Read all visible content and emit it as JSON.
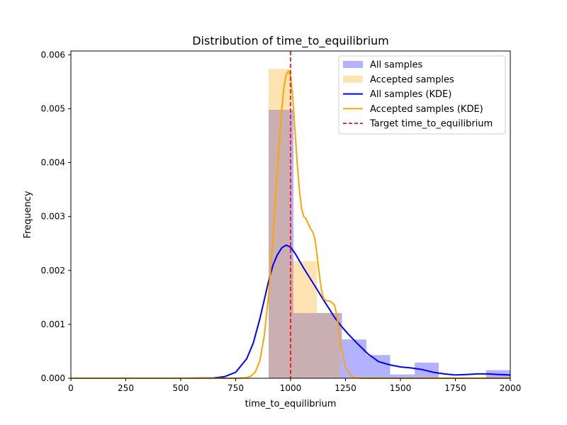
{
  "chart_data": {
    "type": "histogram+kde",
    "title": "Distribution of time_to_equilibrium",
    "xlabel": "time_to_equilibrium",
    "ylabel": "Frequency",
    "xlim": [
      0,
      2000
    ],
    "ylim": [
      0,
      0.00607
    ],
    "xticks": [
      0,
      250,
      500,
      750,
      1000,
      1250,
      1500,
      1750,
      2000
    ],
    "xtick_labels": [
      "0",
      "250",
      "500",
      "750",
      "1000",
      "1250",
      "1500",
      "1750",
      "2000"
    ],
    "yticks": [
      0,
      0.001,
      0.002,
      0.003,
      0.004,
      0.005,
      0.006
    ],
    "ytick_labels": [
      "0.000",
      "0.001",
      "0.002",
      "0.003",
      "0.004",
      "0.005",
      "0.006"
    ],
    "grid": false,
    "legend_position": "upper right",
    "colors": {
      "all": "#0000ff",
      "accepted": "#ffa500",
      "target": "#ff0000"
    },
    "histograms": [
      {
        "name": "All samples",
        "color": "#0000ff",
        "opacity": 0.3,
        "bins": [
          {
            "x0": 900,
            "x1": 1013,
            "value": 0.00498
          },
          {
            "x0": 1013,
            "x1": 1126,
            "value": 0.00121
          },
          {
            "x0": 1126,
            "x1": 1234,
            "value": 0.00121
          },
          {
            "x0": 1234,
            "x1": 1345,
            "value": 0.00072
          },
          {
            "x0": 1345,
            "x1": 1453,
            "value": 0.00043
          },
          {
            "x0": 1453,
            "x1": 1565,
            "value": 7e-05
          },
          {
            "x0": 1565,
            "x1": 1674,
            "value": 0.00029
          },
          {
            "x0": 1674,
            "x1": 1890,
            "value": 0.0
          },
          {
            "x0": 1890,
            "x1": 2000,
            "value": 0.00015
          }
        ]
      },
      {
        "name": "Accepted samples",
        "color": "#ffa500",
        "opacity": 0.3,
        "bins": [
          {
            "x0": 900,
            "x1": 1000,
            "value": 0.00574
          },
          {
            "x0": 1000,
            "x1": 1120,
            "value": 0.00217
          },
          {
            "x0": 1120,
            "x1": 1226,
            "value": 0.00121
          }
        ]
      }
    ],
    "series": [
      {
        "name": "All samples (KDE)",
        "color": "#0000ff",
        "x": [
          0,
          500,
          650,
          700,
          750,
          800,
          830,
          860,
          880,
          900,
          920,
          940,
          960,
          980,
          1000,
          1020,
          1040,
          1060,
          1080,
          1100,
          1120,
          1150,
          1180,
          1200,
          1230,
          1260,
          1300,
          1350,
          1400,
          1450,
          1500,
          1550,
          1600,
          1650,
          1700,
          1750,
          1800,
          1850,
          1900,
          1950,
          2000
        ],
        "y": [
          0.0,
          0.0,
          5e-06,
          3e-05,
          0.00011,
          0.00036,
          0.00065,
          0.0011,
          0.00145,
          0.0018,
          0.0021,
          0.00229,
          0.00242,
          0.00247,
          0.00243,
          0.00232,
          0.00218,
          0.00204,
          0.00191,
          0.00178,
          0.00165,
          0.00145,
          0.00126,
          0.00113,
          0.00097,
          0.00083,
          0.00066,
          0.00046,
          0.00031,
          0.00025,
          0.00021,
          0.00019,
          0.00016,
          0.00011,
          8e-05,
          6e-05,
          7e-05,
          8e-05,
          8e-05,
          7e-05,
          6e-05
        ]
      },
      {
        "name": "Accepted samples (KDE)",
        "color": "#ffa500",
        "x": [
          0,
          750,
          780,
          800,
          820,
          840,
          860,
          880,
          900,
          920,
          940,
          960,
          970,
          980,
          990,
          1000,
          1010,
          1020,
          1030,
          1040,
          1050,
          1060,
          1070,
          1080,
          1090,
          1100,
          1110,
          1120,
          1130,
          1140,
          1150,
          1160,
          1180,
          1200,
          1210,
          1220,
          1230,
          1250,
          1280,
          1300,
          1350,
          2000
        ],
        "y": [
          0.0,
          0.0,
          2e-06,
          1e-05,
          4e-05,
          0.00012,
          0.00032,
          0.00078,
          0.00155,
          0.0026,
          0.0039,
          0.005,
          0.0054,
          0.00563,
          0.0057,
          0.0056,
          0.0052,
          0.0046,
          0.004,
          0.0035,
          0.00315,
          0.003,
          0.00296,
          0.00287,
          0.00278,
          0.00272,
          0.0026,
          0.0023,
          0.00195,
          0.00165,
          0.00148,
          0.00144,
          0.00143,
          0.00136,
          0.00118,
          0.00088,
          0.00058,
          0.0002,
          3e-05,
          5e-06,
          0.0,
          0.0
        ]
      }
    ],
    "reference_line": {
      "name": "Target time_to_equilibrium",
      "x": 1000,
      "color": "#ff0000",
      "style": "dashed"
    },
    "legend": [
      {
        "label": "All samples",
        "kind": "patch",
        "color": "#0000ff"
      },
      {
        "label": "Accepted samples",
        "kind": "patch",
        "color": "#ffa500"
      },
      {
        "label": "All samples (KDE)",
        "kind": "line",
        "color": "#0000ff"
      },
      {
        "label": "Accepted samples (KDE)",
        "kind": "line",
        "color": "#ffa500"
      },
      {
        "label": "Target time_to_equilibrium",
        "kind": "dashed",
        "color": "#ff0000"
      }
    ]
  }
}
